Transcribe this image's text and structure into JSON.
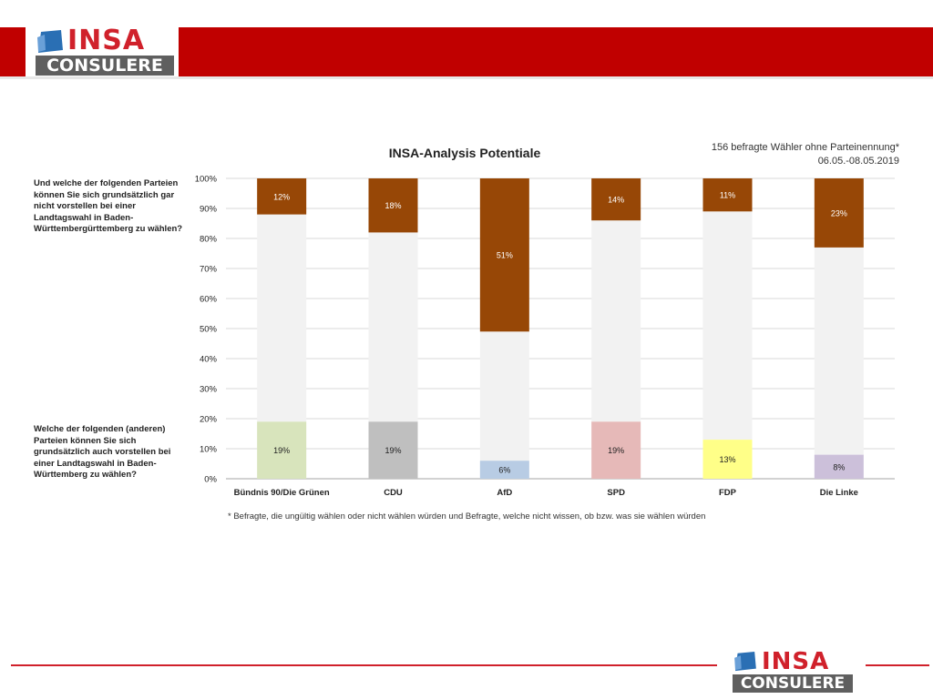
{
  "header": {
    "logo_word": "INSA",
    "logo_sub": "CONSULERE",
    "brand_red": "#c00000",
    "logo_red": "#d0212b",
    "logo_gray": "#5f5f5f",
    "logo_blue": "#2a6fb4"
  },
  "questions": {
    "top": "Und welche der folgenden Parteien können Sie sich grundsätzlich gar nicht vorstellen bei einer Landtagswahl in Baden-Württembergürttemberg zu wählen?",
    "bottom": "Welche der folgenden (anderen) Parteien können Sie sich grundsätzlich auch vorstellen bei einer Landtagswahl in Baden-Württemberg zu wählen?"
  },
  "sample_note": {
    "line1": "156 befragte Wähler ohne Parteinennung*",
    "line2": "06.05.-08.05.2019"
  },
  "footnote": "* Befragte, die ungültig wählen oder nicht wählen würden und Befragte, welche nicht wissen, ob bzw. was sie wählen würden",
  "chart_data": {
    "type": "bar",
    "stacked": true,
    "title": "INSA-Analysis Potentiale",
    "categories": [
      "Bündnis 90/Die Grünen",
      "CDU",
      "AfD",
      "SPD",
      "FDP",
      "Die Linke"
    ],
    "ylim": [
      0,
      100
    ],
    "yticks": [
      0,
      10,
      20,
      30,
      40,
      50,
      60,
      70,
      80,
      90,
      100
    ],
    "ytick_labels": [
      "0%",
      "10%",
      "20%",
      "30%",
      "40%",
      "50%",
      "60%",
      "70%",
      "80%",
      "90%",
      "100%"
    ],
    "grid": true,
    "legend": "none",
    "series": [
      {
        "role": "bottom",
        "values": [
          19,
          19,
          6,
          19,
          13,
          8
        ],
        "labels": [
          "19%",
          "19%",
          "6%",
          "19%",
          "13%",
          "8%"
        ],
        "colors": [
          "#d8e4bc",
          "#bfbfbf",
          "#b8cce4",
          "#e6b9b8",
          "#ffff88",
          "#ccc0da"
        ]
      },
      {
        "role": "middle",
        "color": "#f2f2f2"
      },
      {
        "role": "top",
        "values": [
          12,
          18,
          51,
          14,
          11,
          23
        ],
        "labels": [
          "12%",
          "18%",
          "51%",
          "14%",
          "11%",
          "23%"
        ],
        "color": "#974706"
      }
    ]
  }
}
